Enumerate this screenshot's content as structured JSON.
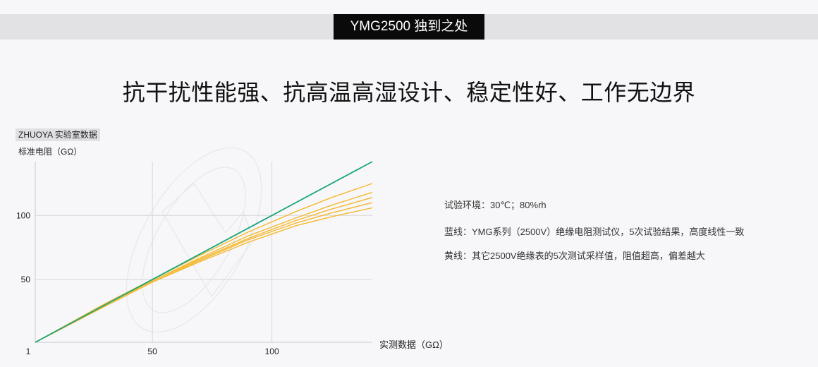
{
  "header": {
    "badge": "YMG2500 独到之处",
    "headline": "抗干扰性能强、抗高温高湿设计、稳定性好、工作无边界"
  },
  "lab_label": "ZHUOYA 实验室数据",
  "notes": [
    "试验环境：30℃；80%rh",
    "蓝线：YMG系列（2500V）绝缘电阻测试仪，5次试验结果，高度线性一致",
    "黄线：其它2500V绝缘表的5次测试采样值，阻值超高，偏差越大"
  ],
  "chart_data": {
    "type": "line",
    "ylabel": "标准电阻（GΩ）",
    "xlabel": "实测数据（GΩ）",
    "xlim": [
      1,
      142
    ],
    "ylim": [
      1,
      142
    ],
    "x_ticks": [
      1,
      50,
      100
    ],
    "y_ticks": [
      50,
      100
    ],
    "grid": true,
    "series": [
      {
        "color": "#1aa67a",
        "x": [
          1,
          142
        ],
        "y": [
          1,
          142
        ]
      },
      {
        "color": "#f5b82e",
        "x": [
          1,
          30,
          50,
          70,
          90,
          110,
          125,
          142
        ],
        "y": [
          1,
          31,
          50,
          69,
          87,
          103,
          114,
          125
        ]
      },
      {
        "color": "#f5b82e",
        "x": [
          1,
          30,
          50,
          70,
          90,
          110,
          125,
          142
        ],
        "y": [
          1,
          30,
          49,
          67,
          84,
          98,
          108,
          118
        ]
      },
      {
        "color": "#f5b82e",
        "x": [
          1,
          30,
          50,
          70,
          90,
          110,
          125,
          142
        ],
        "y": [
          1,
          30,
          49,
          66,
          82,
          96,
          105,
          114
        ]
      },
      {
        "color": "#f5b82e",
        "x": [
          1,
          30,
          50,
          70,
          90,
          110,
          125,
          142
        ],
        "y": [
          1,
          29,
          48,
          65,
          81,
          94,
          102,
          110
        ]
      },
      {
        "color": "#f5b82e",
        "x": [
          1,
          30,
          50,
          70,
          90,
          110,
          125,
          142
        ],
        "y": [
          1,
          29,
          48,
          64,
          79,
          92,
          99,
          106
        ]
      }
    ]
  }
}
